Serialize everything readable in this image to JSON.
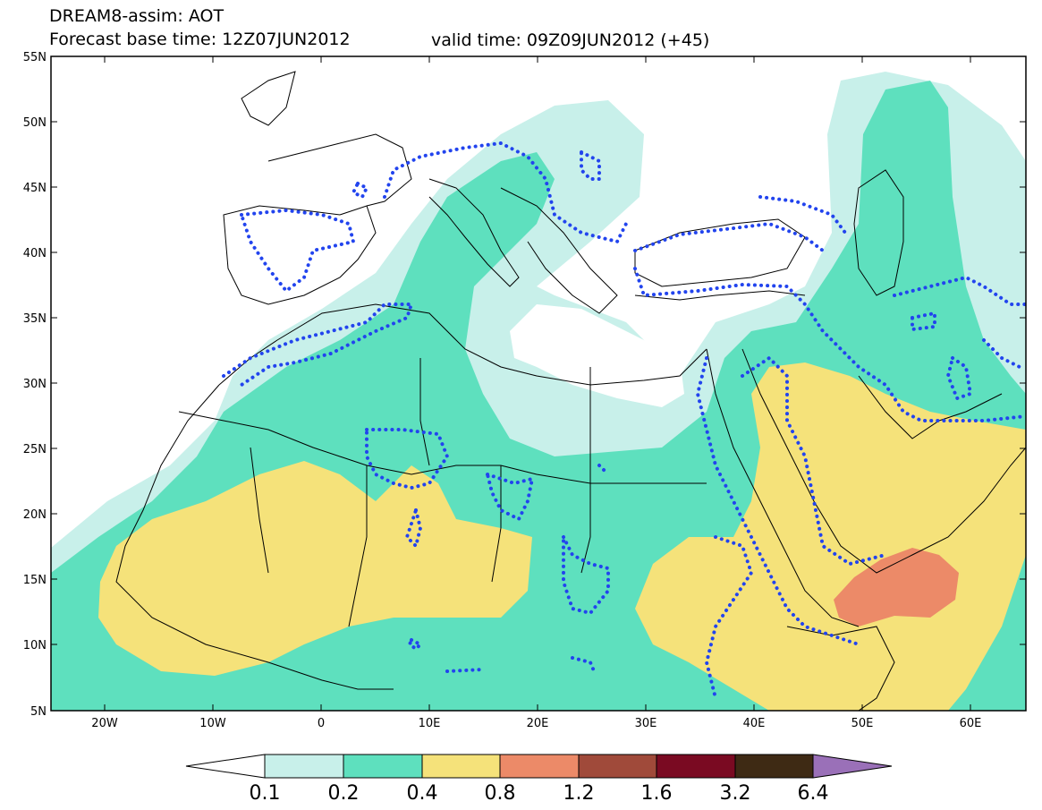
{
  "header": {
    "title_line1": "DREAM8-assim: AOT",
    "title_line2_left": "Forecast base time: 12Z07JUN2012",
    "title_line2_right": "valid time: 09Z09JUN2012 (+45)"
  },
  "axes": {
    "lat_ticks": [
      "55N",
      "50N",
      "45N",
      "40N",
      "35N",
      "30N",
      "25N",
      "20N",
      "15N",
      "10N",
      "5N"
    ],
    "lon_ticks": [
      "20W",
      "10W",
      "0",
      "10E",
      "20E",
      "30E",
      "40E",
      "50E",
      "60E"
    ],
    "lon_range": [
      -25,
      65
    ],
    "lat_range": [
      5,
      55
    ]
  },
  "colorbar": {
    "levels": [
      "0.1",
      "0.2",
      "0.4",
      "0.8",
      "1.2",
      "1.6",
      "3.2",
      "6.4"
    ],
    "colors": [
      "#c8f0ea",
      "#5ee0be",
      "#f5e27a",
      "#ec8a68",
      "#a04a3a",
      "#7a0a22",
      "#3e2a14",
      "#9a70b8"
    ],
    "under_color": "#ffffff"
  },
  "map": {
    "contour_style": "blue-dotted",
    "fill_colors": {
      "c1": "#c8f0ea",
      "c2": "#5ee0be",
      "c3": "#f5e27a",
      "c4": "#ec8a68"
    }
  }
}
